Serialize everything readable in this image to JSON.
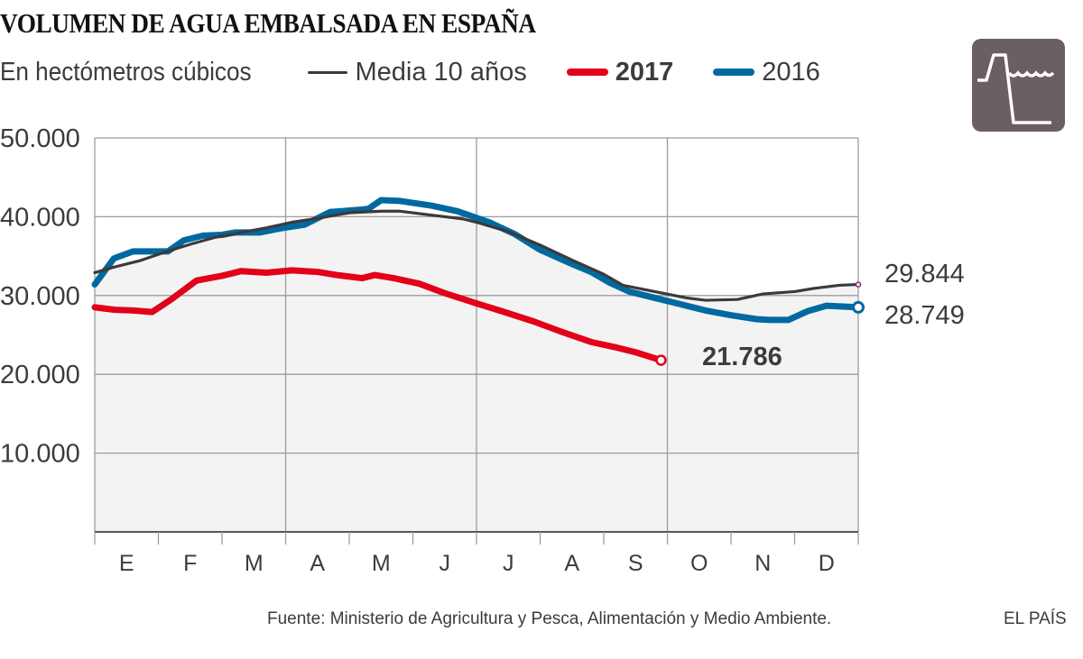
{
  "header": {
    "title": "VOLUMEN DE AGUA EMBALSADA EN ESPAÑA",
    "subtitle": "En hectómetros cúbicos"
  },
  "legend": [
    {
      "label": "Media 10 años",
      "color": "#3d393b",
      "bold": false
    },
    {
      "label": "2017",
      "color": "#e2001a",
      "bold": true
    },
    {
      "label": "2016",
      "color": "#0069a0",
      "bold": false
    }
  ],
  "icon": {
    "name": "reservoir-dam-icon",
    "background": "#6a5f63"
  },
  "footer": {
    "source": "Fuente: Ministerio de Agricultura y Pesca, Alimentación y Medio Ambiente.",
    "brand": "EL PAÍS"
  },
  "chart_data": {
    "type": "line",
    "title": "VOLUMEN DE AGUA EMBALSADA EN ESPAÑA",
    "subtitle": "En hectómetros cúbicos",
    "xlabel": "",
    "ylabel": "",
    "x_unit": "month index (0 = start of January, 12 = end of December)",
    "categories": [
      "E",
      "F",
      "M",
      "A",
      "M",
      "J",
      "J",
      "A",
      "S",
      "O",
      "N",
      "D"
    ],
    "yticks": [
      {
        "value": 10000,
        "label": "10.000"
      },
      {
        "value": 20000,
        "label": "20.000"
      },
      {
        "value": 30000,
        "label": "30.000"
      },
      {
        "value": 40000,
        "label": "40.000"
      },
      {
        "value": 50000,
        "label": "50.000"
      }
    ],
    "ylim": [
      0,
      50000
    ],
    "xlim": [
      0,
      12
    ],
    "grid": true,
    "legend_position": "top",
    "series": [
      {
        "name": "Media 10 años",
        "color": "#3d393b",
        "style": "thin-line-with-area",
        "area_fill": "#f3f3f3",
        "end_label": "29.844",
        "end_marker_color": "#7a2a6e",
        "x": [
          0,
          0.3,
          0.7,
          1.1,
          1.5,
          1.9,
          2.3,
          2.7,
          3.1,
          3.5,
          4.0,
          4.5,
          4.8,
          5.2,
          5.8,
          6.0,
          6.5,
          7.0,
          7.5,
          8.0,
          8.3,
          8.8,
          9.3,
          9.6,
          10.1,
          10.5,
          11.0,
          11.3,
          11.7,
          12.0
        ],
        "values": [
          32900,
          33600,
          34400,
          35500,
          36500,
          37400,
          38000,
          38600,
          39300,
          39800,
          40500,
          40700,
          40700,
          40300,
          39700,
          39300,
          38100,
          36400,
          34500,
          32700,
          31300,
          30500,
          29700,
          29400,
          29500,
          30200,
          30500,
          30900,
          31300,
          31400
        ]
      },
      {
        "name": "2016",
        "color": "#0069a0",
        "style": "thick-line",
        "end_label": "28.749",
        "x": [
          0,
          0.3,
          0.6,
          0.9,
          1.15,
          1.4,
          1.7,
          2.0,
          2.2,
          2.6,
          2.9,
          3.3,
          3.7,
          4.2,
          4.3,
          4.5,
          4.8,
          5.3,
          5.7,
          6.2,
          6.6,
          7.0,
          7.5,
          7.8,
          8.1,
          8.4,
          8.8,
          9.2,
          9.6,
          10.0,
          10.4,
          10.6,
          10.9,
          11.2,
          11.5,
          12.0
        ],
        "values": [
          31400,
          34700,
          35600,
          35600,
          35600,
          37000,
          37600,
          37700,
          38000,
          38000,
          38500,
          39000,
          40600,
          40900,
          41000,
          42100,
          42000,
          41400,
          40700,
          39300,
          37800,
          35800,
          34000,
          33000,
          31600,
          30500,
          29700,
          28900,
          28100,
          27500,
          27000,
          26900,
          26900,
          28000,
          28700,
          28500
        ]
      },
      {
        "name": "2017",
        "color": "#e2001a",
        "style": "thick-line",
        "end_label": "21.786",
        "end_label_bold": true,
        "x": [
          0,
          0.3,
          0.6,
          0.9,
          1.2,
          1.6,
          2.0,
          2.3,
          2.7,
          3.1,
          3.5,
          3.8,
          4.2,
          4.4,
          4.7,
          5.1,
          5.5,
          6.0,
          6.4,
          6.9,
          7.3,
          7.8,
          8.2,
          8.5,
          8.9
        ],
        "values": [
          28500,
          28200,
          28100,
          27900,
          29500,
          31900,
          32500,
          33100,
          32900,
          33200,
          33000,
          32600,
          32200,
          32600,
          32200,
          31500,
          30300,
          29000,
          28000,
          26700,
          25500,
          24100,
          23400,
          22800,
          21786
        ]
      }
    ]
  }
}
